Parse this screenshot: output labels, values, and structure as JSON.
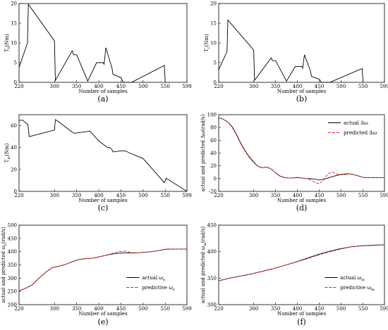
{
  "figure": {
    "panels": [
      {
        "id": "a",
        "caption": "(a)",
        "ylabel": "T",
        "ylabel_sub": "b",
        "ylabel_rest": "(Nm)",
        "xlabel": "Number of samples",
        "xticks": [
          220,
          300,
          350,
          400,
          450,
          500,
          550,
          599
        ],
        "yticks": [
          0,
          5,
          10,
          15,
          20
        ]
      },
      {
        "id": "b",
        "caption": "(b)",
        "ylabel": "T",
        "ylabel_sub": "c",
        "ylabel_rest": "(Nm)",
        "xlabel": "Number of samples",
        "xticks": [
          220,
          300,
          350,
          400,
          450,
          500,
          550,
          599
        ],
        "yticks": [
          0,
          5,
          10,
          15,
          20
        ]
      },
      {
        "id": "c",
        "caption": "(c)",
        "ylabel": "T",
        "ylabel_sub": "m",
        "ylabel_rest": "(Nm)",
        "xlabel": "Number of samples",
        "xticks": [
          220,
          300,
          350,
          400,
          450,
          500,
          550,
          599
        ],
        "yticks": [
          0,
          20,
          40,
          60
        ]
      },
      {
        "id": "d",
        "caption": "(d)",
        "ylabel": "actual and predicted Δω(rad/s)",
        "xlabel": "Number of samples",
        "xticks": [
          220,
          300,
          350,
          400,
          450,
          500,
          550,
          599
        ],
        "yticks": [
          -20,
          0,
          20,
          40,
          60,
          80,
          100
        ],
        "legend": [
          "actual Δω",
          "predicted Δω"
        ]
      },
      {
        "id": "e",
        "caption": "(e)",
        "ylabel": "actual and predicted ω",
        "ylabel_sub": "e",
        "ylabel_rest": "(rad/s)",
        "xlabel": "Number of samples",
        "xticks": [
          220,
          300,
          350,
          400,
          450,
          500,
          550,
          599
        ],
        "yticks": [
          200,
          250,
          300,
          350,
          400,
          450,
          500
        ],
        "legend": [
          {
            "text": "actual ω",
            "sub": "e"
          },
          {
            "text": "predictive ω",
            "sub": "e"
          }
        ]
      },
      {
        "id": "f",
        "caption": "(f)",
        "ylabel": "actual and predicted ω",
        "ylabel_sub": "m",
        "ylabel_rest": "(rad/s)",
        "xlabel": "Number of samples",
        "xticks": [
          220,
          300,
          350,
          400,
          450,
          500,
          550,
          599
        ],
        "yticks": [
          300,
          350,
          400,
          450
        ],
        "legend": [
          {
            "text": "actual ω",
            "sub": "m"
          },
          {
            "text": "predictive ω",
            "sub": "m"
          }
        ]
      }
    ]
  },
  "chart_data": [
    {
      "type": "line",
      "panel": "a",
      "xlim": [
        220,
        599
      ],
      "ylim": [
        0,
        20
      ],
      "grid": false,
      "series": [
        {
          "color": "#000000",
          "x": [
            220,
            239,
            241,
            300,
            302,
            340,
            343,
            350,
            375,
            395,
            410,
            412,
            416,
            430,
            432,
            450,
            455,
            474,
            548,
            550
          ],
          "y": [
            3.8,
            10,
            19.8,
            10.5,
            0.5,
            8,
            7,
            7,
            0.3,
            5,
            5,
            4.6,
            8.8,
            3.5,
            2,
            1.2,
            0,
            0,
            4.3,
            0
          ]
        }
      ]
    },
    {
      "type": "line",
      "panel": "b",
      "xlim": [
        220,
        599
      ],
      "ylim": [
        0,
        20
      ],
      "grid": false,
      "series": [
        {
          "color": "#000000",
          "x": [
            220,
            239,
            241,
            300,
            302,
            340,
            343,
            350,
            375,
            395,
            410,
            412,
            416,
            430,
            432,
            450,
            455,
            474,
            548,
            550
          ],
          "y": [
            3.2,
            7.8,
            15.8,
            8.2,
            0.5,
            6.2,
            5.5,
            5.5,
            0.3,
            4,
            4,
            3.6,
            7,
            2.8,
            1.5,
            0.8,
            0,
            0,
            3.5,
            0
          ]
        }
      ]
    },
    {
      "type": "line",
      "panel": "c",
      "xlim": [
        220,
        599
      ],
      "ylim": [
        0,
        70
      ],
      "grid": false,
      "series": [
        {
          "color": "#000000",
          "x": [
            220,
            228,
            240,
            243,
            300,
            302,
            308,
            340,
            345,
            380,
            400,
            420,
            425,
            430,
            432,
            450,
            460,
            470,
            500,
            548,
            552,
            560,
            599
          ],
          "y": [
            64.8,
            65,
            61,
            50,
            56,
            65.5,
            64,
            54,
            53,
            55,
            46,
            40,
            40,
            38,
            36,
            37,
            37,
            35,
            30,
            8,
            12,
            10,
            0
          ]
        }
      ]
    },
    {
      "type": "line",
      "panel": "d",
      "xlim": [
        220,
        599
      ],
      "ylim": [
        -20,
        100
      ],
      "grid": false,
      "series": [
        {
          "name": "actual Δω",
          "color": "#000000",
          "dash": "",
          "x": [
            220,
            230,
            240,
            250,
            260,
            270,
            280,
            290,
            300,
            310,
            320,
            330,
            340,
            350,
            360,
            370,
            380,
            390,
            400,
            410,
            420,
            430,
            440,
            450,
            460,
            470,
            480,
            490,
            500,
            510,
            520,
            530,
            540,
            550,
            560,
            570,
            580,
            590,
            599
          ],
          "y": [
            95,
            93,
            89,
            82,
            70,
            56,
            44,
            34,
            26,
            19,
            17,
            18,
            15,
            9,
            4,
            1.5,
            1,
            1,
            1.5,
            1,
            0,
            0,
            -1,
            -2,
            -1,
            1,
            3,
            5,
            6.5,
            7.5,
            7.5,
            6,
            4,
            2,
            1.5,
            1.5,
            1.5,
            1.5,
            1.5
          ]
        },
        {
          "name": "predicted Δω",
          "color": "#cc2222",
          "dash": "4,2",
          "x": [
            220,
            230,
            240,
            250,
            260,
            270,
            280,
            290,
            300,
            310,
            320,
            330,
            340,
            350,
            360,
            370,
            380,
            390,
            400,
            410,
            420,
            430,
            440,
            450,
            460,
            470,
            480,
            490,
            500,
            510,
            520,
            530,
            540,
            550,
            560,
            570,
            580,
            590,
            599
          ],
          "y": [
            95,
            93,
            89,
            81,
            69,
            55,
            43,
            33,
            25,
            19,
            17,
            18,
            15,
            9,
            4,
            1.5,
            1,
            1,
            2,
            1,
            0,
            -2,
            -6,
            -8,
            -2,
            8,
            10,
            7,
            6,
            6.5,
            7.5,
            6,
            4,
            2,
            1.5,
            1.5,
            1.5,
            1.5,
            1.5
          ]
        }
      ]
    },
    {
      "type": "line",
      "panel": "e",
      "xlim": [
        220,
        599
      ],
      "ylim": [
        200,
        500
      ],
      "grid": false,
      "series": [
        {
          "name": "actual ωe",
          "color": "#000000",
          "dash": "",
          "x": [
            220,
            235,
            250,
            265,
            280,
            295,
            310,
            325,
            340,
            355,
            370,
            385,
            400,
            415,
            430,
            445,
            460,
            475,
            490,
            505,
            520,
            535,
            550,
            565,
            580,
            599
          ],
          "y": [
            252,
            262,
            275,
            300,
            322,
            340,
            345,
            352,
            362,
            370,
            374,
            375,
            380,
            386,
            391,
            394,
            396,
            395,
            396,
            398,
            400,
            404,
            409,
            410,
            410,
            410
          ]
        },
        {
          "name": "predictive ωe",
          "color": "#cc2222",
          "dash": "4,2",
          "x": [
            220,
            235,
            250,
            265,
            280,
            295,
            310,
            325,
            340,
            355,
            370,
            385,
            400,
            415,
            430,
            445,
            460,
            475,
            490,
            505,
            520,
            535,
            550,
            565,
            580,
            599
          ],
          "y": [
            252,
            262,
            275,
            300,
            322,
            340,
            345,
            352,
            362,
            370,
            374,
            375,
            380,
            386,
            393,
            400,
            402,
            396,
            396,
            398,
            400,
            404,
            409,
            410,
            410,
            410
          ]
        }
      ]
    },
    {
      "type": "line",
      "panel": "f",
      "xlim": [
        220,
        599
      ],
      "ylim": [
        300,
        450
      ],
      "grid": false,
      "series": [
        {
          "name": "actual ωm",
          "color": "#000000",
          "dash": "",
          "x": [
            220,
            245,
            270,
            295,
            320,
            345,
            370,
            395,
            420,
            445,
            470,
            495,
            520,
            545,
            570,
            599
          ],
          "y": [
            345,
            350,
            354,
            358,
            363,
            368,
            374,
            380,
            387,
            394,
            400,
            405,
            409,
            411,
            412,
            413
          ]
        },
        {
          "name": "predictive ωm",
          "color": "#cc2222",
          "dash": "4,2",
          "x": [
            220,
            245,
            270,
            295,
            320,
            345,
            370,
            395,
            420,
            445,
            470,
            495,
            520,
            545,
            570,
            599
          ],
          "y": [
            345,
            350,
            354,
            358,
            363,
            368,
            374,
            380,
            386,
            393,
            399,
            404,
            409,
            411,
            412,
            413
          ]
        }
      ]
    }
  ]
}
